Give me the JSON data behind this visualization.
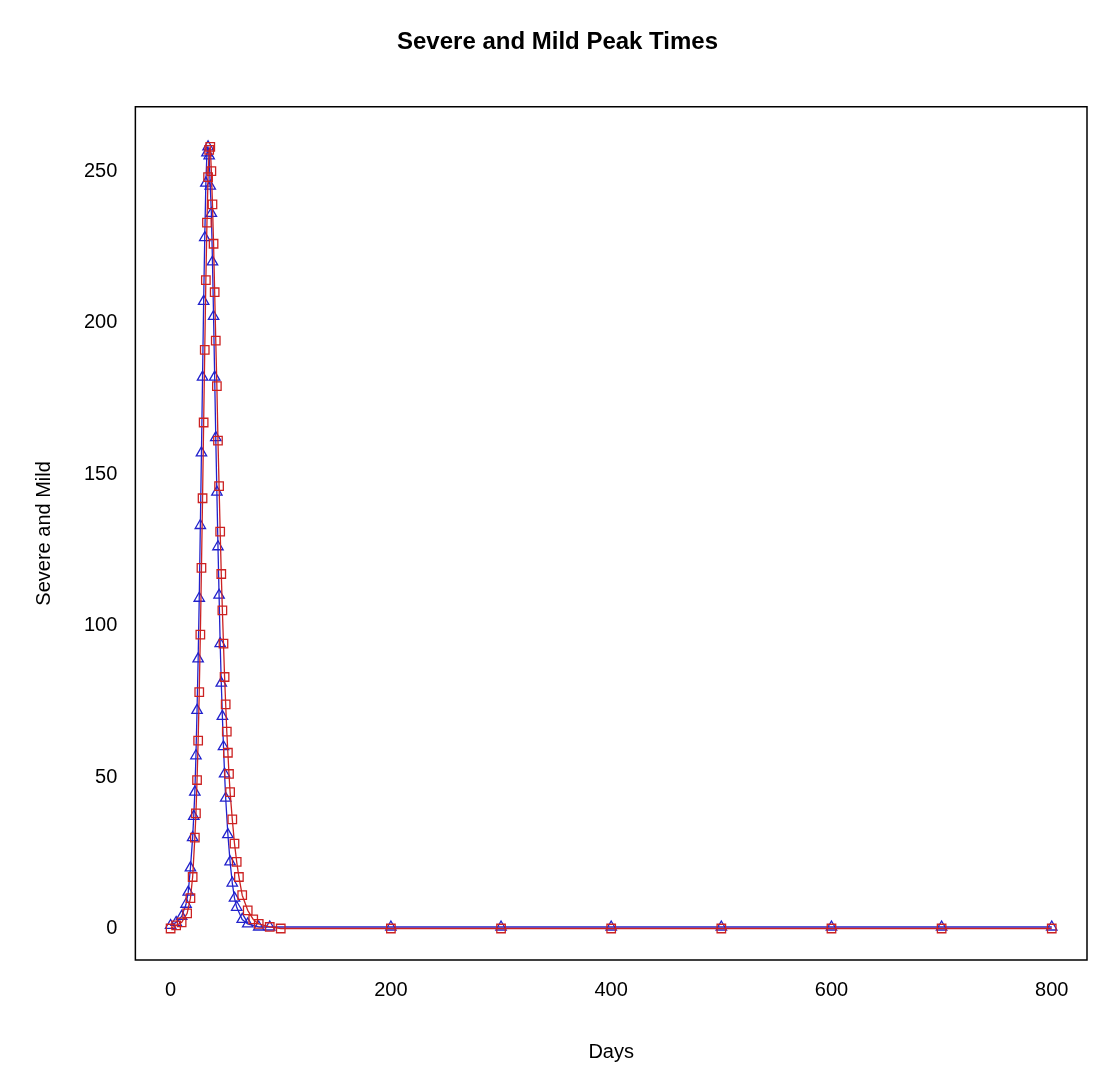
{
  "chart_data": {
    "type": "line",
    "title": "Severe and Mild Peak Times",
    "xlabel": "Days",
    "ylabel": "Severe and Mild",
    "xlim": [
      -32,
      832
    ],
    "ylim": [
      -10.4,
      271.2
    ],
    "xticks": [
      0,
      200,
      400,
      600,
      800
    ],
    "yticks": [
      0,
      50,
      100,
      150,
      200,
      250
    ],
    "grid": false,
    "legend": false,
    "series": [
      {
        "color": "#cc2222",
        "marker": "square",
        "x": [
          0,
          5,
          10,
          15,
          18,
          20,
          22,
          23,
          24,
          25,
          26,
          27,
          28,
          29,
          30,
          31,
          32,
          33,
          34,
          35,
          36,
          37,
          38,
          39,
          40,
          41,
          42,
          43,
          44,
          45,
          46,
          47,
          48,
          49,
          50,
          51,
          52,
          53,
          54,
          56,
          58,
          60,
          62,
          65,
          70,
          75,
          80,
          90,
          100,
          200,
          300,
          400,
          500,
          600,
          700,
          800
        ],
        "values": [
          0,
          1,
          2,
          5,
          10,
          17,
          30,
          38,
          49,
          62,
          78,
          97,
          119,
          142,
          167,
          191,
          214,
          233,
          248,
          257,
          258,
          250,
          239,
          226,
          210,
          194,
          179,
          161,
          146,
          131,
          117,
          105,
          94,
          83,
          74,
          65,
          58,
          51,
          45,
          36,
          28,
          22,
          17,
          11,
          6,
          3,
          1.5,
          0.5,
          0,
          0,
          0,
          0,
          0,
          0,
          0,
          0
        ]
      },
      {
        "color": "#2222cc",
        "marker": "triangle",
        "x": [
          0,
          5,
          10,
          14,
          16,
          18,
          20,
          21,
          22,
          23,
          24,
          25,
          26,
          27,
          28,
          29,
          30,
          31,
          32,
          33,
          34,
          35,
          36,
          37,
          38,
          39,
          40,
          41,
          42,
          43,
          44,
          45,
          46,
          47,
          48,
          49,
          50,
          52,
          54,
          56,
          58,
          60,
          65,
          70,
          80,
          90,
          200,
          300,
          400,
          500,
          600,
          700,
          800
        ],
        "values": [
          1,
          2,
          4,
          8,
          12,
          20,
          30,
          37,
          45,
          57,
          72,
          89,
          109,
          133,
          157,
          182,
          207,
          228,
          246,
          256,
          258,
          255,
          245,
          236,
          220,
          202,
          182,
          162,
          144,
          126,
          110,
          94,
          81,
          70,
          60,
          51,
          43,
          31,
          22,
          15,
          10,
          7,
          3,
          1.5,
          0.5,
          0.5,
          0.5,
          0.5,
          0.5,
          0.5,
          0.5,
          0.5,
          0.5
        ]
      }
    ]
  }
}
